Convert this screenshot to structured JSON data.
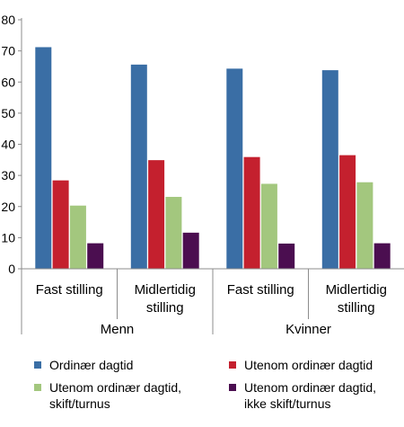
{
  "chart_data": {
    "type": "bar",
    "title": "",
    "xlabel": "",
    "ylabel": "",
    "ylim": [
      0,
      80
    ],
    "yticks": [
      "0",
      "10",
      "20",
      "30",
      "40",
      "50",
      "60",
      "70",
      "80"
    ],
    "grid": false,
    "legend_position": "bottom",
    "groups": [
      {
        "label": "Menn",
        "categories": [
          "Fast stilling",
          "Midlertidig stilling"
        ]
      },
      {
        "label": "Kvinner",
        "categories": [
          "Fast stilling",
          "Midlertidig stilling"
        ]
      }
    ],
    "categories": [
      [
        "Fast stilling"
      ],
      [
        "Midlertidig",
        "stilling"
      ],
      [
        "Fast stilling"
      ],
      [
        "Midlertidig",
        "stilling"
      ]
    ],
    "series": [
      {
        "name": [
          "Ordinær dagtid"
        ],
        "color": "#3a6ea5",
        "values": [
          71.2,
          65.6,
          64.3,
          63.8
        ]
      },
      {
        "name": [
          "Utenom ordinær dagtid"
        ],
        "color": "#c4202e",
        "values": [
          28.4,
          34.9,
          35.9,
          36.5
        ]
      },
      {
        "name": [
          "Utenom ordinær dagtid,",
          "skift/turnus"
        ],
        "color": "#a3c77e",
        "values": [
          20.3,
          23.1,
          27.3,
          27.8
        ]
      },
      {
        "name": [
          "Utenom ordinær dagtid,",
          "ikke skift/turnus"
        ],
        "color": "#4b0e50",
        "values": [
          8.2,
          11.6,
          8.1,
          8.2
        ]
      }
    ]
  }
}
